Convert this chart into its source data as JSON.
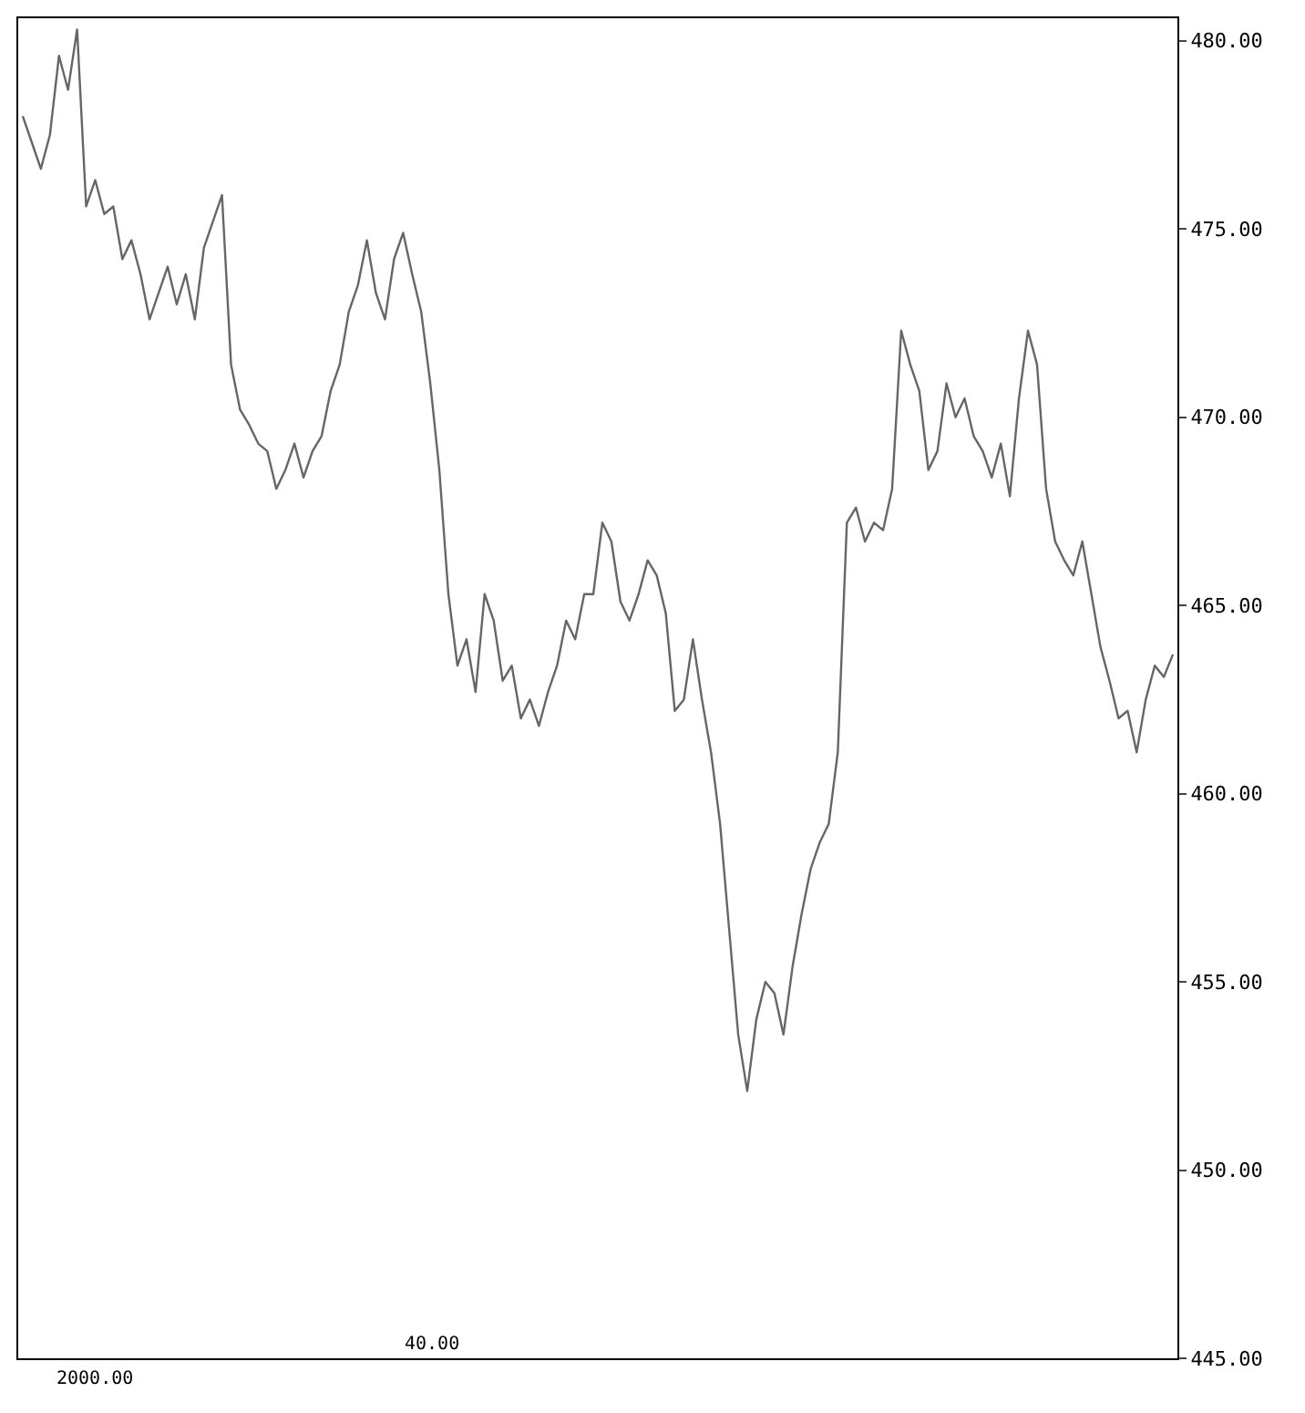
{
  "chart_data": {
    "type": "line",
    "categories": [
      null,
      null,
      null,
      null,
      null,
      null,
      null,
      null,
      null,
      null,
      null,
      null,
      null,
      null,
      null,
      null,
      null,
      null,
      null,
      null,
      null,
      null,
      null,
      null,
      null,
      null,
      null,
      null,
      null,
      null,
      null,
      null,
      null,
      null,
      null,
      null,
      null,
      null,
      null,
      null,
      null,
      null,
      null,
      null,
      null,
      null,
      null,
      null,
      null,
      null,
      null,
      null,
      null,
      null,
      null,
      null,
      null,
      null,
      null,
      null,
      null,
      null,
      null,
      null,
      null,
      null,
      null,
      null,
      null,
      null,
      null,
      null,
      null,
      null,
      null,
      null,
      null,
      null,
      null,
      null,
      null,
      null,
      null,
      null,
      null,
      null,
      null,
      null,
      null,
      null,
      null,
      null,
      null,
      null,
      null,
      null,
      null,
      null,
      null,
      null,
      null,
      null,
      null,
      null,
      null,
      null,
      null,
      null,
      null,
      null,
      null,
      null,
      null,
      null,
      null,
      null,
      null,
      null,
      null,
      null,
      null,
      null,
      null,
      null,
      null,
      null,
      null,
      null
    ],
    "series": [
      {
        "color": "#666666",
        "values": [
          478.0,
          477.3,
          476.6,
          477.5,
          479.6,
          478.7,
          480.3,
          475.6,
          476.3,
          475.4,
          475.6,
          474.2,
          474.7,
          473.8,
          472.6,
          473.3,
          474.0,
          473.0,
          473.8,
          472.6,
          474.5,
          475.2,
          475.9,
          471.4,
          470.2,
          469.8,
          469.3,
          469.1,
          468.1,
          468.6,
          469.3,
          468.4,
          469.1,
          469.5,
          470.7,
          471.4,
          472.8,
          473.5,
          474.7,
          473.3,
          472.6,
          474.2,
          474.9,
          473.8,
          472.8,
          470.9,
          468.6,
          465.3,
          463.4,
          464.1,
          462.7,
          465.3,
          464.6,
          463.0,
          463.4,
          462.0,
          462.5,
          461.8,
          462.7,
          463.4,
          464.6,
          464.1,
          465.3,
          465.3,
          467.2,
          466.7,
          465.1,
          464.6,
          465.3,
          466.2,
          465.8,
          464.8,
          462.2,
          462.5,
          464.1,
          462.5,
          461.1,
          459.2,
          456.4,
          453.6,
          452.1,
          454.0,
          455.0,
          454.7,
          453.6,
          455.4,
          456.8,
          458.0,
          458.7,
          459.2,
          461.1,
          467.2,
          467.6,
          466.7,
          467.2,
          467.0,
          468.1,
          472.3,
          471.4,
          470.7,
          468.6,
          469.1,
          470.9,
          470.0,
          470.5,
          469.5,
          469.1,
          468.4,
          469.3,
          467.9,
          470.5,
          472.3,
          471.4,
          468.1,
          466.7,
          466.2,
          465.8,
          466.7,
          465.3,
          463.9,
          463.0,
          462.0,
          462.2,
          461.1,
          462.5,
          463.4,
          463.1,
          463.7
        ]
      }
    ],
    "ylim": [
      445,
      480.6
    ],
    "yticks": [
      {
        "value": 445,
        "label": "445.00"
      },
      {
        "value": 450,
        "label": "450.00"
      },
      {
        "value": 455,
        "label": "455.00"
      },
      {
        "value": 460,
        "label": "460.00"
      },
      {
        "value": 465,
        "label": "465.00"
      },
      {
        "value": 470,
        "label": "470.00"
      },
      {
        "value": 475,
        "label": "475.00"
      },
      {
        "value": 480,
        "label": "480.00"
      }
    ],
    "annotations": [
      "2000.00",
      "40.00"
    ],
    "marker": "none",
    "line_style": "solid",
    "tick_labels": "y"
  }
}
